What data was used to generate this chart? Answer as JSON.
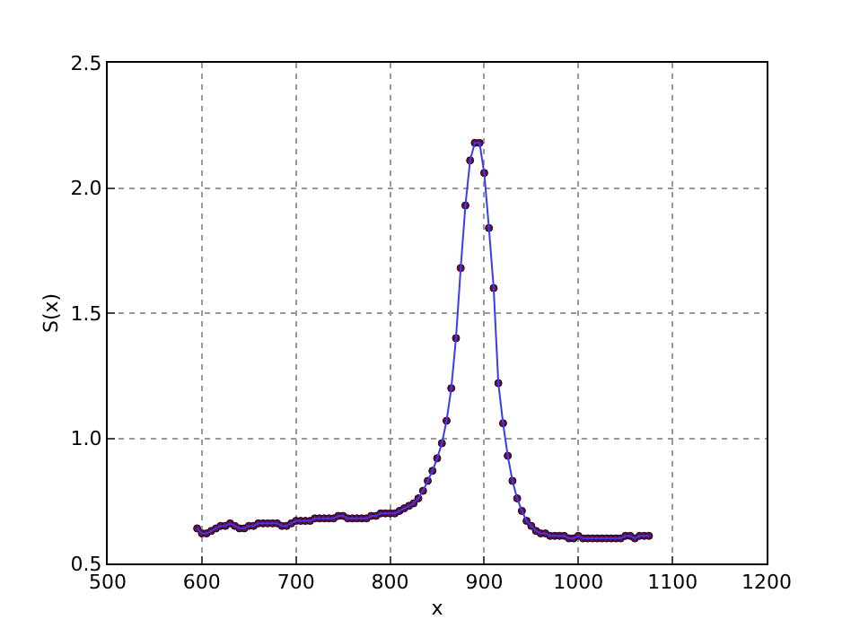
{
  "chart_data": {
    "type": "line",
    "xlabel": "x",
    "ylabel": "S(x)",
    "xlim": [
      500,
      1200
    ],
    "xticks": [
      500,
      600,
      700,
      800,
      900,
      1000,
      1100,
      1200
    ],
    "ylim": [
      0.5,
      2.5
    ],
    "yticks": [
      0.5,
      {
        "value": 1,
        "label": "1.0"
      },
      1.5,
      {
        "value": 2,
        "label": "2.0"
      },
      2.5
    ],
    "grid": true,
    "marker": "circle",
    "line_style": "solid",
    "legend": false,
    "series": [
      {
        "color": "#3b3bf0",
        "x": [
          595,
          600,
          605,
          610,
          615,
          620,
          625,
          630,
          635,
          640,
          645,
          650,
          655,
          660,
          665,
          670,
          675,
          680,
          685,
          690,
          695,
          700,
          705,
          710,
          715,
          720,
          725,
          730,
          735,
          740,
          745,
          750,
          755,
          760,
          765,
          770,
          775,
          780,
          785,
          790,
          795,
          800,
          805,
          810,
          815,
          820,
          825,
          830,
          835,
          840,
          845,
          850,
          855,
          860,
          865,
          870,
          875,
          880,
          885,
          890,
          895,
          900,
          905,
          910,
          915,
          920,
          925,
          930,
          935,
          940,
          945,
          950,
          955,
          960,
          965,
          970,
          975,
          980,
          985,
          990,
          995,
          1000,
          1005,
          1010,
          1015,
          1020,
          1025,
          1030,
          1035,
          1040,
          1045,
          1050,
          1055,
          1060,
          1065,
          1070,
          1075
        ],
        "values": [
          0.64,
          0.62,
          0.62,
          0.63,
          0.64,
          0.65,
          0.65,
          0.66,
          0.65,
          0.64,
          0.64,
          0.65,
          0.65,
          0.66,
          0.66,
          0.66,
          0.66,
          0.66,
          0.65,
          0.65,
          0.66,
          0.67,
          0.67,
          0.67,
          0.67,
          0.68,
          0.68,
          0.68,
          0.68,
          0.68,
          0.69,
          0.69,
          0.68,
          0.68,
          0.68,
          0.68,
          0.68,
          0.69,
          0.69,
          0.7,
          0.7,
          0.7,
          0.7,
          0.71,
          0.72,
          0.73,
          0.74,
          0.76,
          0.79,
          0.83,
          0.87,
          0.92,
          0.98,
          1.07,
          1.2,
          1.4,
          1.68,
          1.93,
          2.11,
          2.18,
          2.18,
          2.06,
          1.84,
          1.6,
          1.22,
          1.06,
          0.93,
          0.83,
          0.76,
          0.71,
          0.67,
          0.65,
          0.63,
          0.62,
          0.62,
          0.61,
          0.61,
          0.61,
          0.61,
          0.6,
          0.6,
          0.61,
          0.6,
          0.6,
          0.6,
          0.6,
          0.6,
          0.6,
          0.6,
          0.6,
          0.6,
          0.61,
          0.61,
          0.6,
          0.61,
          0.61,
          0.61
        ]
      }
    ]
  }
}
